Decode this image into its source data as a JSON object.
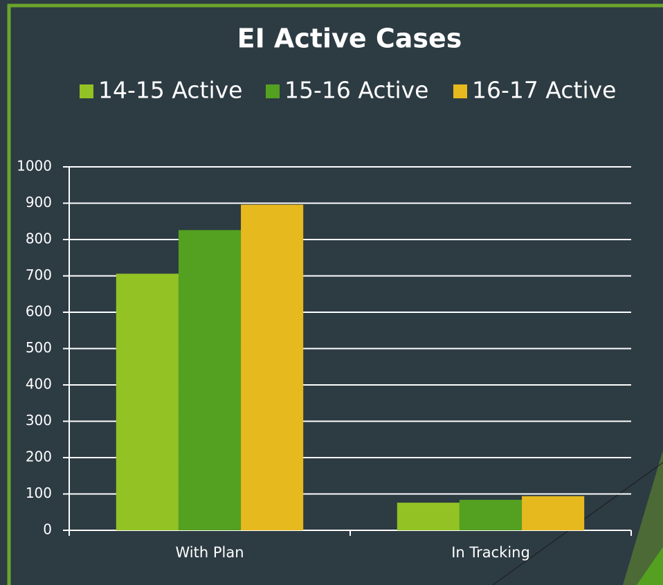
{
  "chart_data": {
    "type": "bar",
    "title": "EI Active Cases",
    "categories": [
      "With Plan",
      "In Tracking"
    ],
    "series": [
      {
        "name": "14-15 Active",
        "color": "#93c225",
        "values": [
          706,
          76
        ]
      },
      {
        "name": "15-16 Active",
        "color": "#54a021",
        "values": [
          826,
          84
        ]
      },
      {
        "name": "16-17 Active",
        "color": "#e6b91e",
        "values": [
          896,
          94
        ]
      }
    ],
    "ylim": [
      0,
      1000
    ],
    "yticks": [
      0,
      100,
      200,
      300,
      400,
      500,
      600,
      700,
      800,
      900,
      1000
    ],
    "grid": true,
    "legend": "top"
  }
}
